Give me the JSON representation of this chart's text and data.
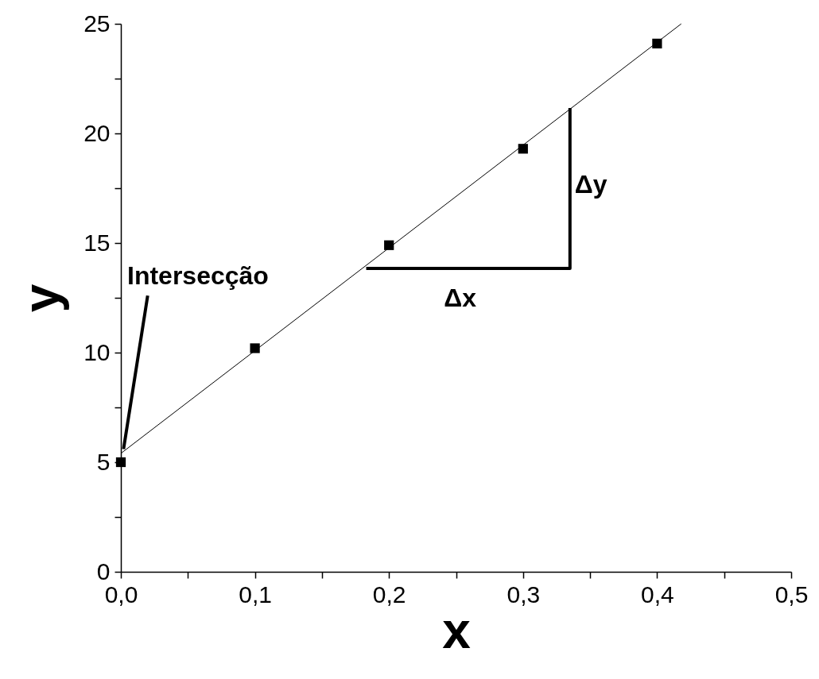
{
  "chart_data": {
    "type": "scatter",
    "xlabel": "x",
    "ylabel": "y",
    "grid": false,
    "xlim": [
      0,
      0.5
    ],
    "ylim": [
      0,
      25
    ],
    "xticks": [
      {
        "value": 0,
        "label": "0,0"
      },
      {
        "value": 0.05,
        "label": null
      },
      {
        "value": 0.1,
        "label": "0,1"
      },
      {
        "value": 0.15,
        "label": null
      },
      {
        "value": 0.2,
        "label": "0,2"
      },
      {
        "value": 0.25,
        "label": null
      },
      {
        "value": 0.3,
        "label": "0,3"
      },
      {
        "value": 0.35,
        "label": null
      },
      {
        "value": 0.4,
        "label": "0,4"
      },
      {
        "value": 0.45,
        "label": null
      },
      {
        "value": 0.5,
        "label": "0,5"
      }
    ],
    "yticks": [
      0,
      {
        "value": 2.5,
        "label": null
      },
      5,
      {
        "value": 7.5,
        "label": null
      },
      10,
      {
        "value": 12.5,
        "label": null
      },
      15,
      {
        "value": 17.5,
        "label": null
      },
      20,
      {
        "value": 22.5,
        "label": null
      },
      25
    ],
    "series": [
      {
        "type": "line",
        "color": "#000000",
        "line_style": "solid",
        "marker": "none",
        "x": [
          0,
          0.418
        ],
        "values": [
          5.4,
          25
        ]
      },
      {
        "color": "#000000",
        "marker": "square",
        "x": [
          0,
          0.1,
          0.2,
          0.3,
          0.4
        ],
        "values": [
          5.0,
          10.2,
          14.9,
          19.3,
          24.1
        ]
      },
      {
        "type": "line",
        "color": "#000000",
        "line_style": "solid",
        "marker": "none",
        "x": [
          0.183,
          0.335,
          0.335
        ],
        "values": [
          13.84,
          13.84,
          21.16
        ]
      },
      {
        "type": "line",
        "color": "#000000",
        "line_style": "solid",
        "marker": "none",
        "x": [
          0.02,
          0.002
        ],
        "values": [
          12.6,
          5.6
        ]
      }
    ],
    "annotations": [
      "Intersecção",
      {
        "text": "Δy",
        "x": 0.335,
        "y": 17.5
      },
      {
        "text": "Δx",
        "x": 0.259,
        "y": 13.84
      }
    ]
  }
}
